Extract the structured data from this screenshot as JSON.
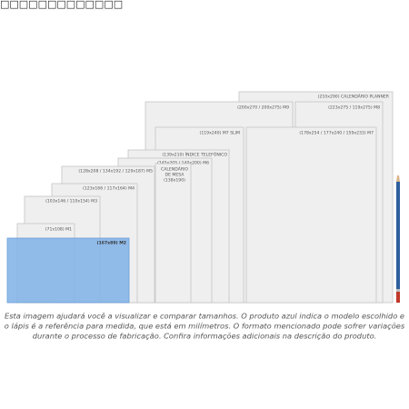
{
  "header_text": "□□□□□□□□□□□□□",
  "sizes": [
    {
      "label": "(210x290) CALENDÁRIO PLANNER"
    },
    {
      "label": "(200x270 / 200x275) M9"
    },
    {
      "label": "(223x275 / 119x275) M8"
    },
    {
      "label": "(119x240) M7 SLIM"
    },
    {
      "label": "(178x254 / 177x240 / 159x233) M7"
    },
    {
      "label": "(139x210) ÍNDICE TELEFÔNICO"
    },
    {
      "label": "(145x205 / 140x200) M6"
    },
    {
      "lines": [
        "CALENDÁRIO",
        "DE MESA",
        "(138x190)"
      ]
    },
    {
      "label": "(128x208 / 134x192 / 129x187) M5"
    },
    {
      "label": "(123x166 / 117x164) M4"
    },
    {
      "label": "(103x146 / 110x154) M3"
    },
    {
      "label": "(71x108) M1"
    },
    {
      "label": "(167x89) M2"
    }
  ],
  "caption": [
    "Esta imagem ajudará você a visualizar e comparar tamanhos. O produto azul indica o modelo escolhido e",
    "o lápis é a referência para medida, que está em milímetros. O formato mencionado pode sofrer variações",
    "durante o processo de fabricação. Confira informações adicionais na descrição do produto."
  ]
}
